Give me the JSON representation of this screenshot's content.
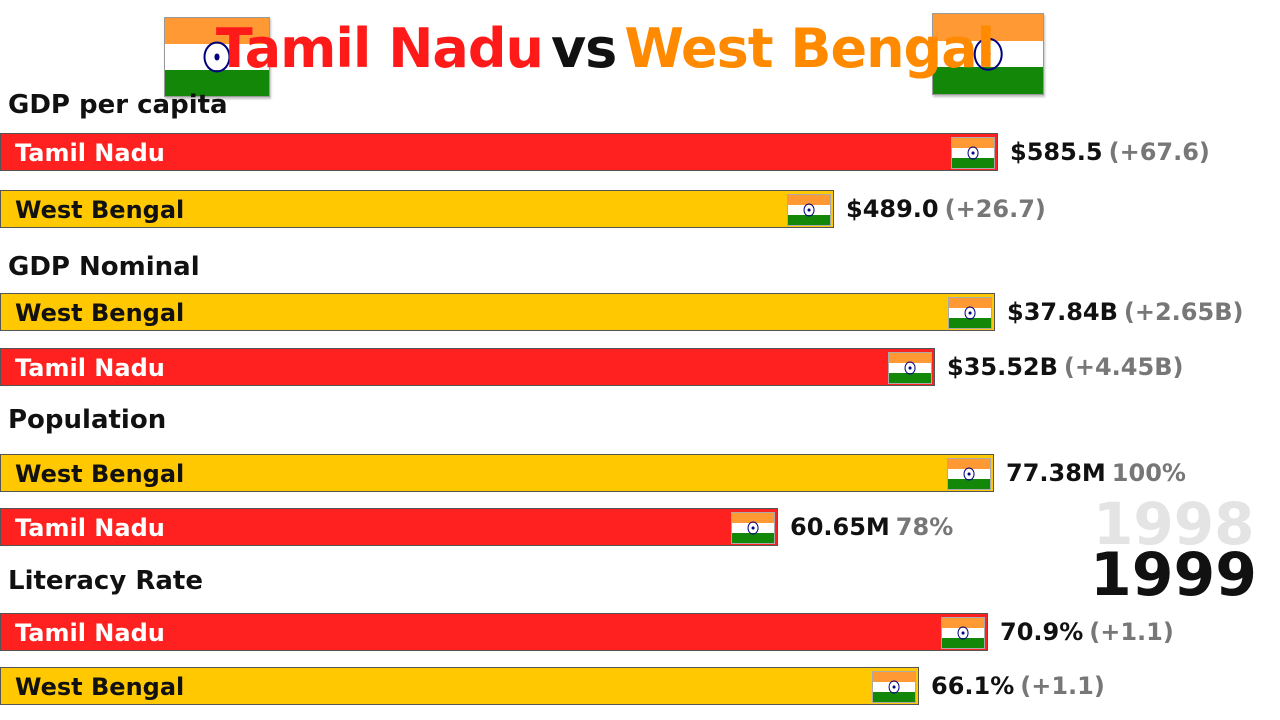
{
  "header": {
    "left": "Tamil Nadu",
    "vs": "vs",
    "right": "West Bengal"
  },
  "year": {
    "previous": "1998",
    "current": "1999"
  },
  "colors": {
    "tamil_nadu": "#ff2020",
    "west_bengal": "#ffc800"
  },
  "chart_data": {
    "type": "bar",
    "title": "Tamil Nadu vs West Bengal",
    "year": 1999,
    "sections": [
      {
        "title": "GDP per capita",
        "bars": [
          {
            "name": "Tamil Nadu",
            "color": "red",
            "value": 585.5,
            "value_label": "$585.5",
            "delta_label": "(+67.6)"
          },
          {
            "name": "West Bengal",
            "color": "yellow",
            "value": 489.0,
            "value_label": "$489.0",
            "delta_label": "(+26.7)"
          }
        ]
      },
      {
        "title": "GDP Nominal",
        "bars": [
          {
            "name": "West Bengal",
            "color": "yellow",
            "value": 37.84,
            "value_label": "$37.84B",
            "delta_label": "(+2.65B)"
          },
          {
            "name": "Tamil Nadu",
            "color": "red",
            "value": 35.52,
            "value_label": "$35.52B",
            "delta_label": "(+4.45B)"
          }
        ]
      },
      {
        "title": "Population",
        "bars": [
          {
            "name": "West Bengal",
            "color": "yellow",
            "value": 77.38,
            "value_label": "77.38M",
            "delta_label": "100%"
          },
          {
            "name": "Tamil Nadu",
            "color": "red",
            "value": 60.65,
            "value_label": "60.65M",
            "delta_label": "78%"
          }
        ]
      },
      {
        "title": "Literacy Rate",
        "bars": [
          {
            "name": "Tamil Nadu",
            "color": "red",
            "value": 70.9,
            "value_label": "70.9%",
            "delta_label": "(+1.1)"
          },
          {
            "name": "West Bengal",
            "color": "yellow",
            "value": 66.1,
            "value_label": "66.1%",
            "delta_label": "(+1.1)"
          }
        ]
      }
    ]
  }
}
